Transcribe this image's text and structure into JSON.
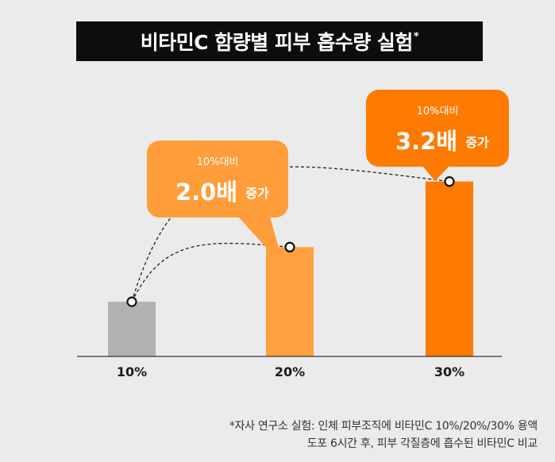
{
  "title": "비타민C 함량별 피부 흡수량 실험",
  "title_mark": "*",
  "colors": {
    "background": "#ebebeb",
    "title_bg": "#0d0d0d",
    "bar_10": "#b1b1b1",
    "bar_20": "#ffa040",
    "bar_30": "#ff7a00",
    "callout_20": "#ff9d3a",
    "callout_30": "#ff7a00"
  },
  "chart_data": {
    "type": "bar",
    "categories": [
      "10%",
      "20%",
      "30%"
    ],
    "values": [
      1.0,
      2.0,
      3.2
    ],
    "ylim": [
      0,
      3.5
    ],
    "grid": false,
    "annotations": [
      {
        "target": "20%",
        "sub": "10%대비",
        "big": "2.0배",
        "suffix": "증가"
      },
      {
        "target": "30%",
        "sub": "10%대비",
        "big": "3.2배",
        "suffix": "증가"
      }
    ]
  },
  "footnote": [
    "*자사 연구소 실험: 인체 피부조직에 비타민C 10%/20%/30% 용액",
    "도포 6시간 후, 피부 각질층에 흡수된 비타민C 비교"
  ]
}
